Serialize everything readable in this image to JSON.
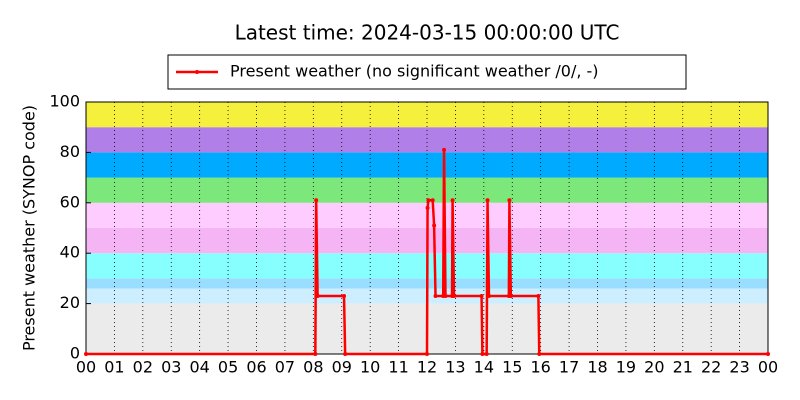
{
  "chart_data": {
    "type": "line",
    "title": "Latest time: 2024-03-15 00:00:00 UTC",
    "y_label": "Present weather (SYNOP code)",
    "x": [
      0,
      8.07,
      8.1,
      8.15,
      9.08,
      9.12,
      12.0,
      12.02,
      12.05,
      12.2,
      12.25,
      12.3,
      12.57,
      12.6,
      12.65,
      12.88,
      12.9,
      12.95,
      13.92,
      13.95,
      14.1,
      14.13,
      14.18,
      14.88,
      14.9,
      14.95,
      15.92,
      15.95,
      24
    ],
    "series": [
      {
        "name": "Present weather (no significant weather /0/, -)",
        "color": "#ff0000",
        "values": [
          0,
          0,
          61,
          23,
          23,
          0,
          0,
          58,
          61,
          61,
          51,
          23,
          23,
          81,
          23,
          23,
          61,
          23,
          23,
          0,
          0,
          61,
          23,
          23,
          61,
          23,
          23,
          0,
          0
        ]
      }
    ],
    "xlim": [
      0,
      24
    ],
    "xticks": [
      {
        "value": 0,
        "label": "00"
      },
      {
        "value": 1,
        "label": "01"
      },
      {
        "value": 2,
        "label": "02"
      },
      {
        "value": 3,
        "label": "03"
      },
      {
        "value": 4,
        "label": "04"
      },
      {
        "value": 5,
        "label": "05"
      },
      {
        "value": 6,
        "label": "06"
      },
      {
        "value": 7,
        "label": "07"
      },
      {
        "value": 8,
        "label": "08"
      },
      {
        "value": 9,
        "label": "09"
      },
      10,
      11,
      12,
      13,
      14,
      15,
      16,
      17,
      18,
      19,
      20,
      21,
      22,
      23,
      {
        "value": 24,
        "label": "00"
      }
    ],
    "ylim": [
      0,
      100
    ],
    "yticks": [
      0,
      20,
      40,
      60,
      80,
      100
    ],
    "grid": true,
    "bands": [
      {
        "from": 0,
        "to": 20,
        "color": "#ebebeb"
      },
      {
        "from": 20,
        "to": 26,
        "color": "#cceeff"
      },
      {
        "from": 26,
        "to": 30,
        "color": "#99ddff"
      },
      {
        "from": 30,
        "to": 40,
        "color": "#88ffff"
      },
      {
        "from": 40,
        "to": 50,
        "color": "#f5b5f5"
      },
      {
        "from": 50,
        "to": 60,
        "color": "#ffccff"
      },
      {
        "from": 60,
        "to": 70,
        "color": "#7ce87c"
      },
      {
        "from": 70,
        "to": 80,
        "color": "#00aaff"
      },
      {
        "from": 80,
        "to": 90,
        "color": "#b07fe8"
      },
      {
        "from": 90,
        "to": 100,
        "color": "#f5f03c"
      }
    ],
    "legend_position": "top"
  }
}
